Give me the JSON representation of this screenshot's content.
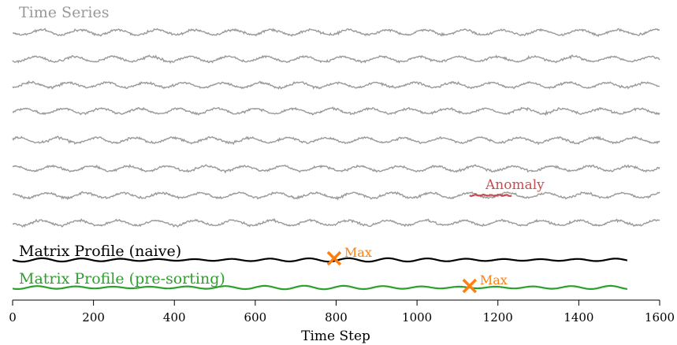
{
  "chart_data": {
    "type": "line",
    "xlim": [
      0,
      1600
    ],
    "xticks": [
      0,
      200,
      400,
      600,
      800,
      1000,
      1200,
      1400,
      1600
    ],
    "xlabel": "Time Step",
    "series_group_label": "Time Series",
    "time_series": {
      "count": 8,
      "length": 1600,
      "period": 95,
      "color": "#999999",
      "anomaly": {
        "series_index": 6,
        "x_range": [
          1130,
          1235
        ],
        "label": "Anomaly",
        "color": "#c44e52"
      }
    },
    "profiles": [
      {
        "name": "Matrix Profile (naive)",
        "color": "#000000",
        "length": 1520,
        "max_x": 795,
        "max_label": "Max"
      },
      {
        "name": "Matrix Profile (pre-sorting)",
        "color": "#2ca02c",
        "length": 1520,
        "max_x": 1130,
        "max_label": "Max"
      }
    ],
    "marker_color": "#ff7f0e"
  }
}
